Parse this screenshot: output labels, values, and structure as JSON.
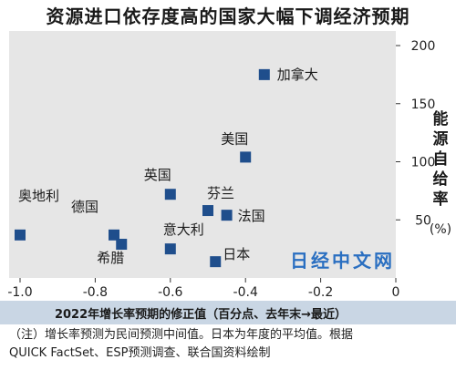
{
  "title": "资源进口依存度高的国家大幅下调经济预期",
  "xlabel": "2022年增长率预期的修正值（百分点、去年末→最近）",
  "ylabel_text": "能源自给率",
  "ylabel_unit": "%",
  "note_line1": "（注）增长率预测为民间预测中间值。日本为年度的平均值。根据",
  "note_line2": "QUICK FactSet、ESP预测调查、联合国资料绘制",
  "watermark": "日经中文网",
  "colors": {
    "point": "#1f4e8c",
    "plot_bg": "#e6e6e6",
    "label_band": "#c9d6e4"
  },
  "chart_data": {
    "type": "scatter",
    "title": "资源进口依存度高的国家大幅下调经济预期",
    "xlabel": "2022年增长率预期的修正值（百分点、去年末→最近）",
    "ylabel": "能源自给率（%）",
    "xlim": [
      -1.0,
      0
    ],
    "ylim": [
      0,
      200
    ],
    "xticks": [
      "-1.0",
      "-0.8",
      "-0.6",
      "-0.4",
      "-0.2",
      "0"
    ],
    "yticks": [
      "50",
      "100",
      "150",
      "200"
    ],
    "grid": false,
    "points": [
      {
        "label": "加拿大",
        "x": -0.35,
        "y": 175
      },
      {
        "label": "美国",
        "x": -0.4,
        "y": 104
      },
      {
        "label": "英国",
        "x": -0.6,
        "y": 72
      },
      {
        "label": "芬兰",
        "x": -0.5,
        "y": 58
      },
      {
        "label": "法国",
        "x": -0.45,
        "y": 54
      },
      {
        "label": "奥地利",
        "x": -1.0,
        "y": 37
      },
      {
        "label": "德国",
        "x": -0.75,
        "y": 37
      },
      {
        "label": "希腊",
        "x": -0.73,
        "y": 29
      },
      {
        "label": "意大利",
        "x": -0.6,
        "y": 25
      },
      {
        "label": "日本",
        "x": -0.48,
        "y": 14
      }
    ]
  }
}
